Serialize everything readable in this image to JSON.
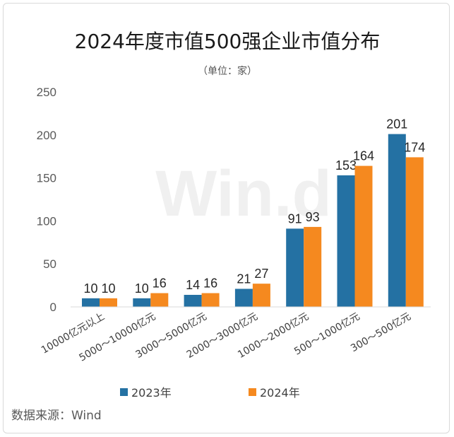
{
  "chart_data": {
    "type": "bar",
    "title": "2024年度市值500强企业市值分布",
    "subtitle": "（单位：家）",
    "categories": [
      "10000亿元以上",
      "5000～10000亿元",
      "3000～5000亿元",
      "2000～3000亿元",
      "1000～2000亿元",
      "500～1000亿元",
      "300～500亿元"
    ],
    "series": [
      {
        "name": "2023年",
        "color": "#2471a3",
        "values": [
          10,
          10,
          14,
          21,
          91,
          153,
          201
        ]
      },
      {
        "name": "2024年",
        "color": "#f5891f",
        "values": [
          10,
          16,
          16,
          27,
          93,
          164,
          174
        ]
      }
    ],
    "yticks": [
      0,
      50,
      100,
      150,
      200,
      250
    ],
    "ylim": [
      0,
      250
    ],
    "grid": false,
    "legend_position": "bottom"
  },
  "source": "数据来源：Wind",
  "watermark": "Win.d"
}
